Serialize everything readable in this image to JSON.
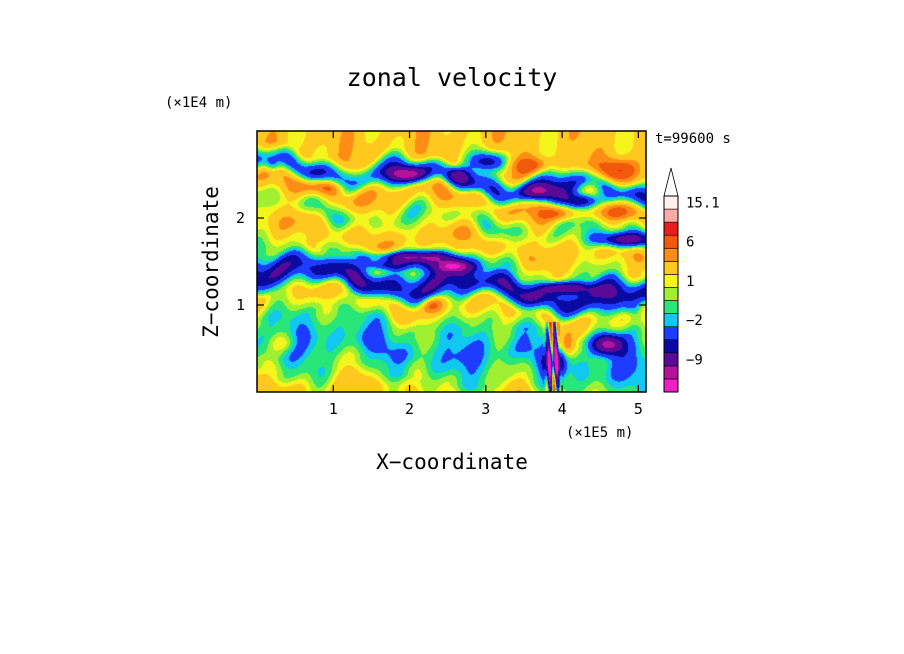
{
  "chart_data": {
    "type": "heatmap",
    "title": "zonal velocity",
    "xlabel": "X−coordinate",
    "ylabel": "Z−coordinate",
    "x_unit": "(×1E5 m)",
    "y_unit": "(×1E4 m)",
    "time_label": "t=99600 s",
    "x_range": [
      0,
      5.1
    ],
    "y_range": [
      0,
      3.0
    ],
    "x_ticks": [
      "1",
      "2",
      "3",
      "4",
      "5"
    ],
    "y_ticks": [
      "1",
      "2"
    ],
    "colorbar": {
      "levels": [
        -13,
        -11,
        -9,
        -6,
        -4,
        -2,
        -1,
        0,
        1,
        2,
        4,
        6,
        9,
        12,
        15.1
      ],
      "colors": [
        "#f01ec8",
        "#b4129a",
        "#5a0a96",
        "#0a0aa0",
        "#1e3cff",
        "#10c8f0",
        "#28e678",
        "#a0f032",
        "#f5f51e",
        "#ffc81e",
        "#ff8c14",
        "#f05a0a",
        "#e61e1e",
        "#ffaaa5",
        "#fff0f0"
      ],
      "tick_labels": [
        "15.1",
        "6",
        "1",
        "−2",
        "−9"
      ],
      "extend_max": true
    },
    "bands": [
      {
        "y": 0.1,
        "u": 2.5
      },
      {
        "y": 0.35,
        "u": 0.0
      },
      {
        "y": 0.62,
        "u": -1.8
      },
      {
        "y": 0.9,
        "u": -0.5
      },
      {
        "y": 1.15,
        "u": 2.2
      },
      {
        "y": 1.4,
        "u": -5.5
      },
      {
        "y": 1.65,
        "u": 0.8
      },
      {
        "y": 1.9,
        "u": 3.2
      },
      {
        "y": 2.15,
        "u": 0.2
      },
      {
        "y": 2.4,
        "u": 3.6
      },
      {
        "y": 2.62,
        "u": -3.0
      },
      {
        "y": 2.85,
        "u": 2.8
      }
    ],
    "vortices": [
      {
        "x": 2.05,
        "y": 1.55,
        "u": -10,
        "rx": 0.55,
        "ry": 0.07
      },
      {
        "x": 2.6,
        "y": 1.45,
        "u": -9,
        "rx": 0.35,
        "ry": 0.08
      },
      {
        "x": 1.75,
        "y": 1.45,
        "u": -6,
        "rx": 0.3,
        "ry": 0.06
      },
      {
        "x": 4.8,
        "y": 1.75,
        "u": -11,
        "rx": 0.35,
        "ry": 0.09
      },
      {
        "x": 4.25,
        "y": 2.2,
        "u": -9,
        "rx": 0.3,
        "ry": 0.09
      },
      {
        "x": 3.7,
        "y": 2.3,
        "u": -8,
        "rx": 0.25,
        "ry": 0.1
      },
      {
        "x": 2.0,
        "y": 2.5,
        "u": -8,
        "rx": 0.28,
        "ry": 0.09
      },
      {
        "x": 3.05,
        "y": 2.65,
        "u": -8,
        "rx": 0.25,
        "ry": 0.12
      },
      {
        "x": 2.65,
        "y": 2.5,
        "u": -7,
        "rx": 0.15,
        "ry": 0.09
      },
      {
        "x": 4.05,
        "y": 1.2,
        "u": -9,
        "rx": 0.3,
        "ry": 0.07
      },
      {
        "x": 4.6,
        "y": 0.55,
        "u": -10,
        "rx": 0.2,
        "ry": 0.12
      },
      {
        "x": 3.9,
        "y": 0.35,
        "u": -8,
        "rx": 0.12,
        "ry": 0.2
      },
      {
        "x": 4.05,
        "y": 0.55,
        "u": 5,
        "rx": 0.1,
        "ry": 0.12
      },
      {
        "x": 4.75,
        "y": 2.55,
        "u": 7,
        "rx": 0.25,
        "ry": 0.12
      },
      {
        "x": 3.6,
        "y": 2.6,
        "u": 5,
        "rx": 0.25,
        "ry": 0.1
      },
      {
        "x": 3.95,
        "y": 2.05,
        "u": 4,
        "rx": 0.25,
        "ry": 0.08
      },
      {
        "x": 4.75,
        "y": 2.05,
        "u": 3,
        "rx": 0.3,
        "ry": 0.08
      },
      {
        "x": 2.3,
        "y": 1.0,
        "u": 5,
        "rx": 0.15,
        "ry": 0.1
      },
      {
        "x": 0.9,
        "y": 2.35,
        "u": 3.5,
        "rx": 0.3,
        "ry": 0.08
      },
      {
        "x": 0.35,
        "y": 0.55,
        "u": 3,
        "rx": 0.2,
        "ry": 0.12
      },
      {
        "x": 0.2,
        "y": 2.6,
        "u": -4,
        "rx": 0.1,
        "ry": 0.08
      },
      {
        "x": 4.95,
        "y": 0.95,
        "u": -3,
        "rx": 0.12,
        "ry": 0.1
      }
    ]
  }
}
